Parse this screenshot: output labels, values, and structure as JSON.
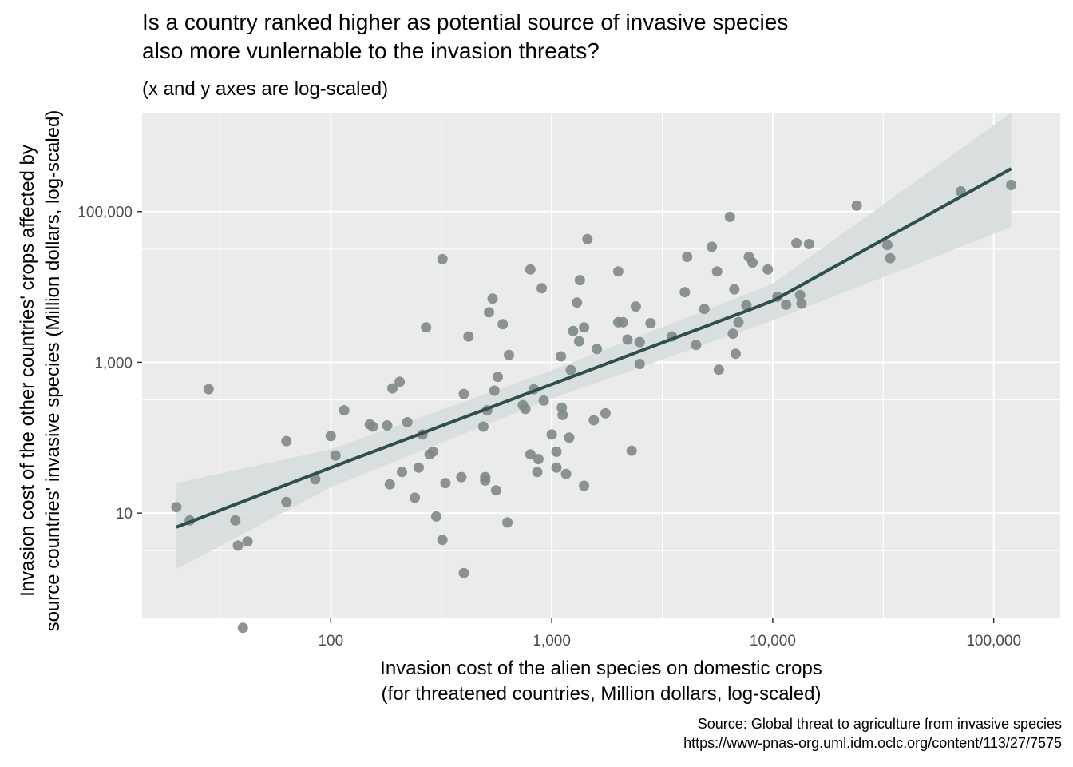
{
  "chart_data": {
    "type": "scatter",
    "title": "Is a country ranked higher as potential source of invasive species\nalso more vunlernable to the invasion threats?",
    "subtitle": "(x and y axes are log-scaled)",
    "xlabel": "Invasion cost of the alien species on domestic crops\n(for threatened countries, Million dollars, log-scaled)",
    "ylabel": "Invasion cost of the other countries' crops affected by\nsource countries' invasive species (Million dollars, log-scaled)",
    "caption": "Source: Global threat to agriculture from invasive species\nhttps://www-pnas-org.uml.idm.oclc.org/content/113/27/7575",
    "x_scale": "log10",
    "y_scale": "log10",
    "xlim": [
      14,
      200000
    ],
    "ylim": [
      0.4,
      2000000
    ],
    "x_ticks": [
      {
        "value": 100,
        "label": "100"
      },
      {
        "value": 1000,
        "label": "1,000"
      },
      {
        "value": 10000,
        "label": "10,000"
      },
      {
        "value": 100000,
        "label": "100,000"
      }
    ],
    "y_ticks": [
      {
        "value": 10,
        "label": "10"
      },
      {
        "value": 1000,
        "label": "1,000"
      },
      {
        "value": 100000,
        "label": "100,000"
      }
    ],
    "grid": true,
    "point_color": "#808a87",
    "line_color": "#2f4f4f",
    "band_color": "#d6dedd",
    "panel_color": "#ebebeb",
    "points": [
      [
        20,
        12
      ],
      [
        23,
        8
      ],
      [
        28,
        440
      ],
      [
        37,
        8
      ],
      [
        38,
        3.7
      ],
      [
        40,
        0.3
      ],
      [
        42,
        4.2
      ],
      [
        63,
        90
      ],
      [
        63,
        14
      ],
      [
        85,
        28
      ],
      [
        100,
        105
      ],
      [
        105,
        58
      ],
      [
        115,
        230
      ],
      [
        150,
        150
      ],
      [
        155,
        140
      ],
      [
        180,
        145
      ],
      [
        185,
        24
      ],
      [
        190,
        450
      ],
      [
        205,
        550
      ],
      [
        210,
        35
      ],
      [
        222,
        160
      ],
      [
        240,
        16
      ],
      [
        250,
        40
      ],
      [
        260,
        110
      ],
      [
        270,
        2900
      ],
      [
        280,
        60
      ],
      [
        290,
        65
      ],
      [
        300,
        9
      ],
      [
        320,
        4.4
      ],
      [
        320,
        23300
      ],
      [
        330,
        25
      ],
      [
        390,
        30
      ],
      [
        400,
        1.6
      ],
      [
        400,
        380
      ],
      [
        420,
        2200
      ],
      [
        490,
        140
      ],
      [
        500,
        30
      ],
      [
        500,
        27
      ],
      [
        510,
        230
      ],
      [
        520,
        4600
      ],
      [
        540,
        7000
      ],
      [
        550,
        420
      ],
      [
        560,
        20
      ],
      [
        570,
        640
      ],
      [
        600,
        3200
      ],
      [
        630,
        7.5
      ],
      [
        640,
        1250
      ],
      [
        740,
        270
      ],
      [
        760,
        240
      ],
      [
        800,
        60
      ],
      [
        800,
        17000
      ],
      [
        830,
        440
      ],
      [
        860,
        35
      ],
      [
        870,
        52
      ],
      [
        900,
        9600
      ],
      [
        920,
        310
      ],
      [
        1000,
        110
      ],
      [
        1050,
        65
      ],
      [
        1050,
        40
      ],
      [
        1100,
        1200
      ],
      [
        1110,
        250
      ],
      [
        1120,
        200
      ],
      [
        1160,
        33
      ],
      [
        1200,
        100
      ],
      [
        1220,
        790
      ],
      [
        1250,
        2600
      ],
      [
        1300,
        6200
      ],
      [
        1330,
        1900
      ],
      [
        1340,
        12300
      ],
      [
        1400,
        23
      ],
      [
        1400,
        2900
      ],
      [
        1450,
        43000
      ],
      [
        1550,
        170
      ],
      [
        1600,
        1500
      ],
      [
        1750,
        210
      ],
      [
        2000,
        16000
      ],
      [
        2000,
        3400
      ],
      [
        2100,
        3400
      ],
      [
        2200,
        2000
      ],
      [
        2300,
        67
      ],
      [
        2400,
        5500
      ],
      [
        2500,
        1850
      ],
      [
        2500,
        950
      ],
      [
        2800,
        3300
      ],
      [
        3500,
        2200
      ],
      [
        4000,
        8500
      ],
      [
        4100,
        25000
      ],
      [
        4500,
        1700
      ],
      [
        4900,
        5100
      ],
      [
        5300,
        34000
      ],
      [
        5600,
        16000
      ],
      [
        5700,
        800
      ],
      [
        6400,
        85000
      ],
      [
        6600,
        2400
      ],
      [
        6700,
        9300
      ],
      [
        6800,
        1300
      ],
      [
        7000,
        3400
      ],
      [
        7600,
        5700
      ],
      [
        7800,
        25000
      ],
      [
        8100,
        21000
      ],
      [
        9500,
        17000
      ],
      [
        10500,
        7400
      ],
      [
        11500,
        5800
      ],
      [
        12800,
        38000
      ],
      [
        13300,
        7800
      ],
      [
        13500,
        6000
      ],
      [
        14600,
        37000
      ],
      [
        24000,
        120000
      ],
      [
        33000,
        36000
      ],
      [
        34000,
        24000
      ],
      [
        71000,
        185000
      ],
      [
        120000,
        225000
      ]
    ],
    "fit_line": [
      [
        20,
        6.5
      ],
      [
        100,
        40
      ],
      [
        1000,
        510
      ],
      [
        10000,
        6500
      ],
      [
        120000,
        370000
      ]
    ],
    "fit_band": {
      "x": [
        20,
        100,
        1000,
        10000,
        120000
      ],
      "upper": [
        25,
        70,
        780,
        11000,
        2050000
      ],
      "lower": [
        1.8,
        22,
        330,
        3600,
        62000
      ]
    }
  }
}
